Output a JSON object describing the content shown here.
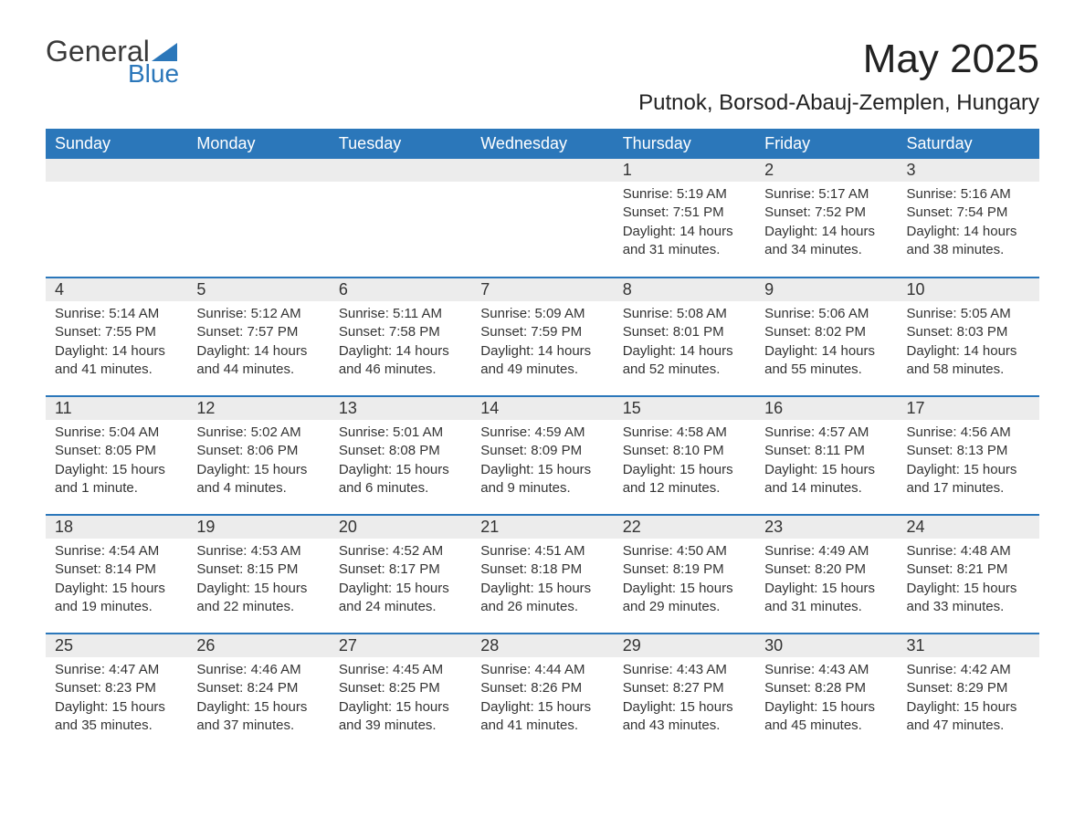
{
  "brand": {
    "part1": "General",
    "part2": "Blue"
  },
  "title": "May 2025",
  "location": "Putnok, Borsod-Abauj-Zemplen, Hungary",
  "colors": {
    "header_bg": "#2b77ba",
    "header_text": "#ffffff",
    "daynum_bg": "#ececec",
    "border": "#2b77ba",
    "text": "#333333",
    "brand_blue": "#2b77ba"
  },
  "day_headers": [
    "Sunday",
    "Monday",
    "Tuesday",
    "Wednesday",
    "Thursday",
    "Friday",
    "Saturday"
  ],
  "weeks": [
    [
      null,
      null,
      null,
      null,
      {
        "n": "1",
        "sunrise": "5:19 AM",
        "sunset": "7:51 PM",
        "daylight": "14 hours and 31 minutes."
      },
      {
        "n": "2",
        "sunrise": "5:17 AM",
        "sunset": "7:52 PM",
        "daylight": "14 hours and 34 minutes."
      },
      {
        "n": "3",
        "sunrise": "5:16 AM",
        "sunset": "7:54 PM",
        "daylight": "14 hours and 38 minutes."
      }
    ],
    [
      {
        "n": "4",
        "sunrise": "5:14 AM",
        "sunset": "7:55 PM",
        "daylight": "14 hours and 41 minutes."
      },
      {
        "n": "5",
        "sunrise": "5:12 AM",
        "sunset": "7:57 PM",
        "daylight": "14 hours and 44 minutes."
      },
      {
        "n": "6",
        "sunrise": "5:11 AM",
        "sunset": "7:58 PM",
        "daylight": "14 hours and 46 minutes."
      },
      {
        "n": "7",
        "sunrise": "5:09 AM",
        "sunset": "7:59 PM",
        "daylight": "14 hours and 49 minutes."
      },
      {
        "n": "8",
        "sunrise": "5:08 AM",
        "sunset": "8:01 PM",
        "daylight": "14 hours and 52 minutes."
      },
      {
        "n": "9",
        "sunrise": "5:06 AM",
        "sunset": "8:02 PM",
        "daylight": "14 hours and 55 minutes."
      },
      {
        "n": "10",
        "sunrise": "5:05 AM",
        "sunset": "8:03 PM",
        "daylight": "14 hours and 58 minutes."
      }
    ],
    [
      {
        "n": "11",
        "sunrise": "5:04 AM",
        "sunset": "8:05 PM",
        "daylight": "15 hours and 1 minute."
      },
      {
        "n": "12",
        "sunrise": "5:02 AM",
        "sunset": "8:06 PM",
        "daylight": "15 hours and 4 minutes."
      },
      {
        "n": "13",
        "sunrise": "5:01 AM",
        "sunset": "8:08 PM",
        "daylight": "15 hours and 6 minutes."
      },
      {
        "n": "14",
        "sunrise": "4:59 AM",
        "sunset": "8:09 PM",
        "daylight": "15 hours and 9 minutes."
      },
      {
        "n": "15",
        "sunrise": "4:58 AM",
        "sunset": "8:10 PM",
        "daylight": "15 hours and 12 minutes."
      },
      {
        "n": "16",
        "sunrise": "4:57 AM",
        "sunset": "8:11 PM",
        "daylight": "15 hours and 14 minutes."
      },
      {
        "n": "17",
        "sunrise": "4:56 AM",
        "sunset": "8:13 PM",
        "daylight": "15 hours and 17 minutes."
      }
    ],
    [
      {
        "n": "18",
        "sunrise": "4:54 AM",
        "sunset": "8:14 PM",
        "daylight": "15 hours and 19 minutes."
      },
      {
        "n": "19",
        "sunrise": "4:53 AM",
        "sunset": "8:15 PM",
        "daylight": "15 hours and 22 minutes."
      },
      {
        "n": "20",
        "sunrise": "4:52 AM",
        "sunset": "8:17 PM",
        "daylight": "15 hours and 24 minutes."
      },
      {
        "n": "21",
        "sunrise": "4:51 AM",
        "sunset": "8:18 PM",
        "daylight": "15 hours and 26 minutes."
      },
      {
        "n": "22",
        "sunrise": "4:50 AM",
        "sunset": "8:19 PM",
        "daylight": "15 hours and 29 minutes."
      },
      {
        "n": "23",
        "sunrise": "4:49 AM",
        "sunset": "8:20 PM",
        "daylight": "15 hours and 31 minutes."
      },
      {
        "n": "24",
        "sunrise": "4:48 AM",
        "sunset": "8:21 PM",
        "daylight": "15 hours and 33 minutes."
      }
    ],
    [
      {
        "n": "25",
        "sunrise": "4:47 AM",
        "sunset": "8:23 PM",
        "daylight": "15 hours and 35 minutes."
      },
      {
        "n": "26",
        "sunrise": "4:46 AM",
        "sunset": "8:24 PM",
        "daylight": "15 hours and 37 minutes."
      },
      {
        "n": "27",
        "sunrise": "4:45 AM",
        "sunset": "8:25 PM",
        "daylight": "15 hours and 39 minutes."
      },
      {
        "n": "28",
        "sunrise": "4:44 AM",
        "sunset": "8:26 PM",
        "daylight": "15 hours and 41 minutes."
      },
      {
        "n": "29",
        "sunrise": "4:43 AM",
        "sunset": "8:27 PM",
        "daylight": "15 hours and 43 minutes."
      },
      {
        "n": "30",
        "sunrise": "4:43 AM",
        "sunset": "8:28 PM",
        "daylight": "15 hours and 45 minutes."
      },
      {
        "n": "31",
        "sunrise": "4:42 AM",
        "sunset": "8:29 PM",
        "daylight": "15 hours and 47 minutes."
      }
    ]
  ],
  "labels": {
    "sunrise": "Sunrise: ",
    "sunset": "Sunset: ",
    "daylight": "Daylight: "
  }
}
